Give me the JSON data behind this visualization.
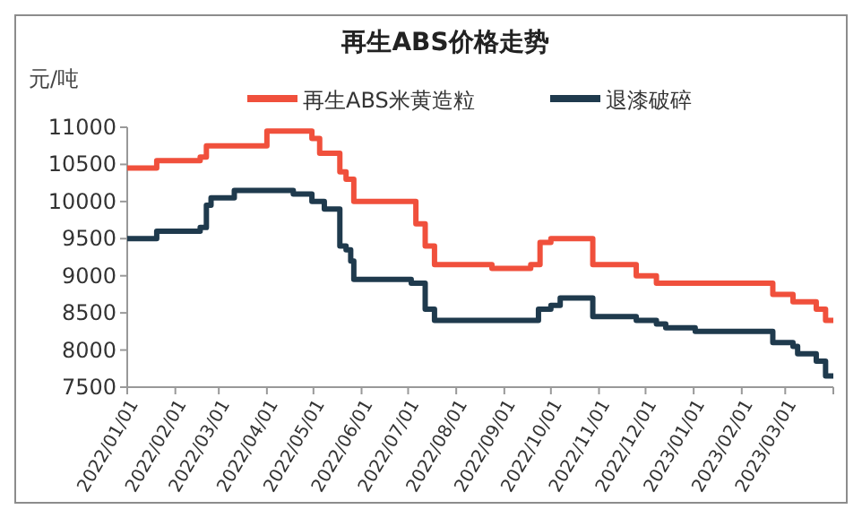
{
  "chart_data": {
    "type": "step",
    "title": "再生ABS价格走势",
    "ylabel": "元/吨",
    "xlim": [
      "2022-01-01",
      "2023-04-01"
    ],
    "xticks": [
      {
        "value": "2022-01-01",
        "label": "2022/01/01"
      },
      {
        "value": "2022-02-01",
        "label": "2022/02/01"
      },
      {
        "value": "2022-03-01",
        "label": "2022/03/01"
      },
      {
        "value": "2022-04-01",
        "label": "2022/04/01"
      },
      {
        "value": "2022-05-01",
        "label": "2022/05/01"
      },
      {
        "value": "2022-06-01",
        "label": "2022/06/01"
      },
      {
        "value": "2022-07-01",
        "label": "2022/07/01"
      },
      {
        "value": "2022-08-01",
        "label": "2022/08/01"
      },
      {
        "value": "2022-09-01",
        "label": "2022/09/01"
      },
      {
        "value": "2022-10-01",
        "label": "2022/10/01"
      },
      {
        "value": "2022-11-01",
        "label": "2022/11/01"
      },
      {
        "value": "2022-12-01",
        "label": "2022/12/01"
      },
      {
        "value": "2023-01-01",
        "label": "2023/01/01"
      },
      {
        "value": "2023-02-01",
        "label": "2023/02/01"
      },
      {
        "value": "2023-03-01",
        "label": "2023/03/01"
      },
      {
        "value": "2023-04-01",
        "label": null
      }
    ],
    "ylim": [
      7500,
      11000
    ],
    "yticks": [
      7500,
      8000,
      8500,
      9000,
      9500,
      10000,
      10500,
      11000
    ],
    "grid": false,
    "legend": "top",
    "marker": "none",
    "line_style": "solid",
    "series": [
      {
        "name": "再生ABS米黄造粒",
        "color": "#f0503c",
        "x": [
          "2022-01-01",
          "2022-01-20",
          "2022-02-17",
          "2022-02-21",
          "2022-04-01",
          "2022-04-30",
          "2022-05-05",
          "2022-05-18",
          "2022-05-22",
          "2022-05-27",
          "2022-07-06",
          "2022-07-12",
          "2022-07-18",
          "2022-08-24",
          "2022-09-18",
          "2022-09-24",
          "2022-10-01",
          "2022-10-28",
          "2022-11-25",
          "2022-12-08",
          "2023-02-21",
          "2023-03-06",
          "2023-03-21",
          "2023-03-27",
          "2023-04-01"
        ],
        "values": [
          10450,
          10550,
          10600,
          10750,
          10950,
          10850,
          10650,
          10400,
          10300,
          10000,
          9700,
          9400,
          9150,
          9100,
          9150,
          9450,
          9500,
          9150,
          9000,
          8900,
          8750,
          8650,
          8550,
          8400,
          8400
        ]
      },
      {
        "name": "退漆破碎",
        "color": "#1f3a4d",
        "x": [
          "2022-01-01",
          "2022-01-20",
          "2022-02-17",
          "2022-02-21",
          "2022-02-24",
          "2022-03-11",
          "2022-04-18",
          "2022-04-30",
          "2022-05-08",
          "2022-05-18",
          "2022-05-22",
          "2022-05-25",
          "2022-05-27",
          "2022-07-03",
          "2022-07-12",
          "2022-07-18",
          "2022-09-23",
          "2022-10-01",
          "2022-10-07",
          "2022-10-28",
          "2022-11-25",
          "2022-12-08",
          "2022-12-14",
          "2023-01-02",
          "2023-02-21",
          "2023-03-06",
          "2023-03-09",
          "2023-03-21",
          "2023-03-27",
          "2023-04-01"
        ],
        "values": [
          9500,
          9600,
          9650,
          9950,
          10050,
          10150,
          10100,
          10000,
          9900,
          9400,
          9350,
          9200,
          8950,
          8900,
          8550,
          8400,
          8550,
          8600,
          8700,
          8450,
          8400,
          8350,
          8300,
          8250,
          8100,
          8050,
          7950,
          7850,
          7650,
          7650
        ]
      }
    ]
  }
}
